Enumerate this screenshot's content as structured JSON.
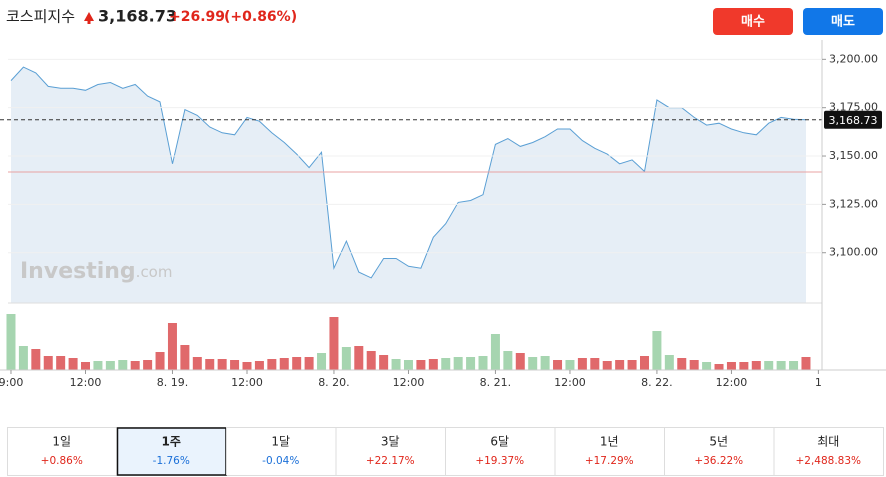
{
  "header": {
    "name": "코스피지수",
    "price": "3,168.73",
    "change": "+26.99",
    "change_pct": "(+0.86%)"
  },
  "buttons": {
    "buy": "매수",
    "sell": "매도"
  },
  "watermark": {
    "brand": "Investing",
    "suffix": ".com"
  },
  "chart_data": {
    "type": "line",
    "x": [
      0,
      1,
      2,
      3,
      4,
      5,
      6,
      7,
      8,
      9,
      10,
      11,
      12,
      13,
      14,
      15,
      16,
      17,
      18,
      19,
      20,
      21,
      22,
      23,
      24,
      25,
      26,
      27,
      28,
      29,
      30,
      31,
      32,
      33,
      34,
      35,
      36,
      37,
      38,
      39,
      40,
      41,
      42,
      43,
      44,
      45,
      46,
      47,
      48,
      49,
      50,
      51,
      52,
      53,
      54,
      55,
      56,
      57,
      58,
      59,
      60,
      61,
      62,
      63,
      64
    ],
    "series": [
      {
        "color": "#5a9fd4",
        "fill": "#e6eef6",
        "values": [
          3189,
          3196,
          3193,
          3186,
          3185,
          3185,
          3184,
          3187,
          3188,
          3185,
          3187,
          3181,
          3178,
          3146,
          3174,
          3171,
          3165,
          3162,
          3161,
          3170,
          3168,
          3162,
          3157,
          3151,
          3144,
          3152,
          3092,
          3106,
          3090,
          3087,
          3097,
          3097,
          3093,
          3092,
          3108,
          3115,
          3126,
          3127,
          3130,
          3156,
          3159,
          3155,
          3157,
          3160,
          3164,
          3164,
          3158,
          3154,
          3151,
          3146,
          3148,
          3142,
          3179,
          3175,
          3175,
          3170,
          3166,
          3167,
          3164,
          3162,
          3161,
          3167,
          3170,
          3169,
          3168.73
        ]
      }
    ],
    "volume": {
      "values": [
        56,
        24,
        21,
        14,
        14,
        12,
        8,
        9,
        9,
        10,
        9,
        10,
        18,
        47,
        25,
        13,
        11,
        11,
        10,
        8,
        9,
        11,
        12,
        13,
        13,
        17,
        53,
        23,
        24,
        19,
        15,
        11,
        10,
        10,
        11,
        12,
        13,
        13,
        14,
        36,
        19,
        17,
        13,
        14,
        10,
        10,
        12,
        12,
        9,
        10,
        10,
        14,
        39,
        15,
        12,
        10,
        8,
        6,
        8,
        8,
        9,
        9,
        9,
        9,
        13
      ],
      "colors": [
        "g",
        "g",
        "r",
        "r",
        "r",
        "r",
        "r",
        "g",
        "g",
        "g",
        "r",
        "r",
        "r",
        "r",
        "r",
        "r",
        "r",
        "r",
        "r",
        "r",
        "r",
        "r",
        "r",
        "r",
        "r",
        "g",
        "r",
        "g",
        "r",
        "r",
        "r",
        "g",
        "g",
        "r",
        "r",
        "g",
        "g",
        "g",
        "g",
        "g",
        "g",
        "r",
        "g",
        "g",
        "r",
        "g",
        "r",
        "r",
        "r",
        "r",
        "r",
        "r",
        "g",
        "g",
        "r",
        "r",
        "g",
        "r",
        "r",
        "r",
        "r",
        "g",
        "g",
        "g",
        "r"
      ],
      "palette": {
        "g": "#a6d5b0",
        "r": "#e0696b"
      },
      "ylim": [
        0,
        60
      ]
    },
    "xlim": [
      -0.24,
      65.29
    ],
    "xticks": [
      {
        "value": 0,
        "label": "9:00"
      },
      {
        "value": 6,
        "label": "12:00"
      },
      {
        "value": 13,
        "label": "8. 19."
      },
      {
        "value": 19,
        "label": "12:00"
      },
      {
        "value": 26,
        "label": "8. 20."
      },
      {
        "value": 32,
        "label": "12:00"
      },
      {
        "value": 39,
        "label": "8. 21."
      },
      {
        "value": 45,
        "label": "12:00"
      },
      {
        "value": 52,
        "label": "8. 22."
      },
      {
        "value": 58,
        "label": "12:00"
      },
      {
        "value": 65,
        "label": "1"
      }
    ],
    "ylim": [
      3074,
      3210
    ],
    "yticks": [
      {
        "value": 3100,
        "label": "3,100.00"
      },
      {
        "value": 3125,
        "label": "3,125.00"
      },
      {
        "value": 3150,
        "label": "3,150.00"
      },
      {
        "value": 3175,
        "label": "3,175.00"
      },
      {
        "value": 3200,
        "label": "3,200.00"
      }
    ],
    "last_price": {
      "value": 3168.73,
      "label": "3,168.73"
    },
    "prev_close": 3141.74
  },
  "periods": {
    "selected": 1,
    "items": [
      {
        "label": "1일",
        "change": "+0.86%",
        "color": "#e0261b"
      },
      {
        "label": "1주",
        "change": "-1.76%",
        "color": "#1a6fd8"
      },
      {
        "label": "1달",
        "change": "-0.04%",
        "color": "#1a6fd8"
      },
      {
        "label": "3달",
        "change": "+22.17%",
        "color": "#e0261b"
      },
      {
        "label": "6달",
        "change": "+19.37%",
        "color": "#e0261b"
      },
      {
        "label": "1년",
        "change": "+17.29%",
        "color": "#e0261b"
      },
      {
        "label": "5년",
        "change": "+36.22%",
        "color": "#e0261b"
      },
      {
        "label": "최대",
        "change": "+2,488.83%",
        "color": "#e0261b"
      }
    ]
  }
}
